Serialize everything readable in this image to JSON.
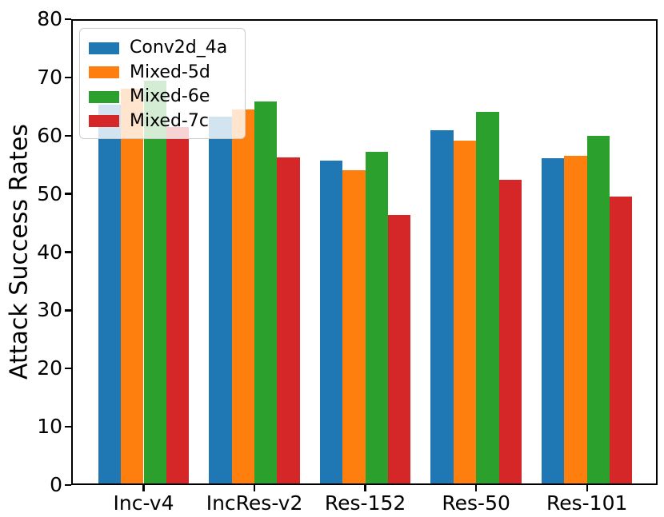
{
  "figure": {
    "ylabel": "Attack Success Rates"
  },
  "chart_data": {
    "type": "bar",
    "title": "",
    "xlabel": "",
    "ylabel": "Attack Success Rates",
    "categories": [
      "Inc-v4",
      "IncRes-v2",
      "Res-152",
      "Res-50",
      "Res-101"
    ],
    "series": [
      {
        "name": "Conv2d_4a",
        "color": "#1f77b4",
        "values": [
          65.3,
          63.3,
          55.7,
          60.9,
          56.1
        ]
      },
      {
        "name": "Mixed-5d",
        "color": "#ff7f0e",
        "values": [
          68.0,
          64.5,
          54.0,
          59.1,
          56.5
        ]
      },
      {
        "name": "Mixed-6e",
        "color": "#2ca02c",
        "values": [
          69.5,
          65.9,
          57.2,
          64.1,
          60.0
        ]
      },
      {
        "name": "Mixed-7c",
        "color": "#d62728",
        "values": [
          61.5,
          56.2,
          46.4,
          52.4,
          49.5
        ]
      }
    ],
    "ylim": [
      0,
      80
    ],
    "yticks": [
      0,
      10,
      20,
      30,
      40,
      50,
      60,
      70,
      80
    ],
    "grid": false,
    "legend_position": "upper-left",
    "axis_color": "#000000",
    "background_color": "#ffffff"
  }
}
